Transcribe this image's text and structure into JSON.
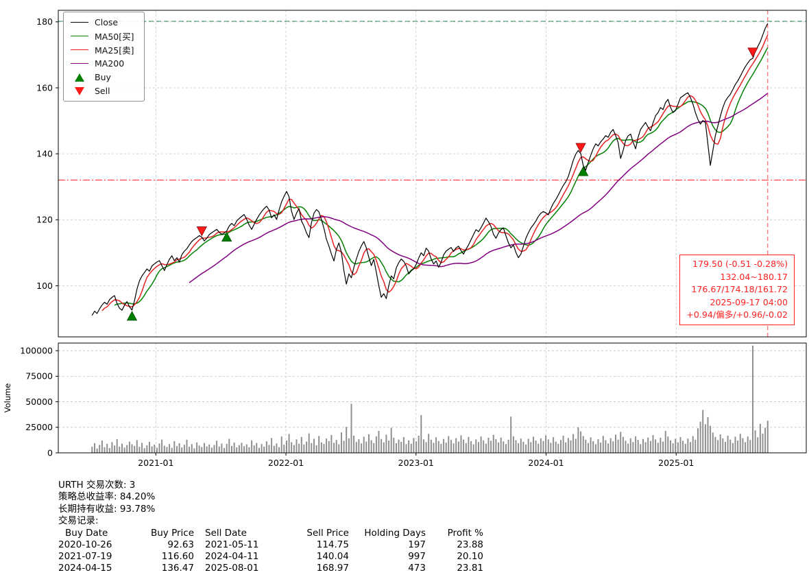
{
  "chart_data": {
    "type": "line",
    "title": "",
    "x_start_year": 2020.51,
    "x_step_years": 0.019165,
    "xlim": [
      2020.25,
      2026.0
    ],
    "x_ticks": [
      {
        "pos": 2021.0,
        "label": "2021-01"
      },
      {
        "pos": 2022.0,
        "label": "2022-01"
      },
      {
        "pos": 2023.0,
        "label": "2023-01"
      },
      {
        "pos": 2024.0,
        "label": "2024-01"
      },
      {
        "pos": 2025.0,
        "label": "2025-01"
      }
    ],
    "main": {
      "ylim": [
        84.5,
        183.5
      ],
      "y_ticks": [
        100,
        120,
        140,
        160,
        180
      ],
      "close_color": "#000000",
      "close": [
        91.0,
        92.3,
        91.6,
        93.0,
        94.2,
        95.0,
        94.4,
        95.8,
        96.5,
        97.0,
        94.6,
        93.2,
        92.6,
        94.1,
        95.2,
        93.6,
        92.63,
        95.5,
        99.0,
        101.5,
        103.0,
        104.0,
        105.1,
        104.4,
        106.0,
        106.6,
        107.2,
        107.6,
        106.1,
        104.6,
        106.4,
        108.0,
        109.1,
        107.6,
        108.5,
        107.2,
        109.4,
        110.5,
        111.2,
        112.4,
        113.4,
        114.1,
        114.6,
        115.2,
        114.75,
        113.6,
        114.4,
        115.5,
        116.1,
        116.6,
        117.1,
        116.2,
        115.6,
        116.0,
        116.6,
        118.1,
        118.9,
        118.2,
        119.6,
        120.4,
        121.0,
        121.6,
        120.1,
        118.4,
        117.1,
        118.6,
        120.1,
        121.4,
        122.5,
        123.4,
        124.1,
        123.0,
        120.6,
        121.5,
        120.1,
        123.0,
        125.4,
        127.1,
        128.6,
        127.0,
        122.6,
        120.1,
        122.0,
        123.4,
        119.6,
        118.1,
        116.0,
        114.6,
        119.1,
        122.0,
        123.1,
        122.4,
        120.0,
        117.4,
        114.1,
        112.0,
        109.6,
        107.5,
        111.0,
        113.0,
        110.1,
        104.6,
        100.5,
        103.6,
        102.4,
        105.5,
        108.1,
        110.4,
        112.1,
        113.4,
        111.5,
        108.6,
        106.1,
        108.0,
        104.1,
        100.0,
        96.5,
        97.6,
        96.1,
        100.1,
        103.0,
        102.1,
        105.4,
        107.0,
        108.1,
        107.4,
        106.0,
        103.6,
        104.5,
        105.1,
        106.5,
        108.4,
        110.0,
        109.1,
        111.4,
        110.5,
        108.1,
        106.6,
        107.5,
        105.6,
        107.1,
        109.4,
        110.5,
        111.1,
        111.6,
        110.4,
        111.5,
        112.0,
        110.6,
        109.6,
        111.1,
        112.4,
        114.0,
        115.5,
        117.0,
        116.4,
        117.6,
        119.0,
        120.5,
        119.4,
        118.0,
        115.6,
        114.4,
        116.0,
        117.0,
        117.5,
        115.1,
        113.0,
        111.5,
        112.4,
        110.1,
        108.5,
        109.6,
        112.0,
        114.4,
        116.1,
        117.5,
        118.5,
        119.6,
        121.0,
        122.0,
        122.5,
        122.1,
        121.5,
        123.4,
        125.0,
        126.1,
        127.5,
        129.0,
        130.4,
        131.5,
        133.1,
        135.5,
        138.0,
        139.9,
        141.0,
        140.04,
        136.47,
        135.0,
        137.4,
        139.5,
        141.5,
        143.0,
        142.4,
        143.6,
        144.5,
        145.5,
        145.0,
        146.5,
        147.4,
        145.5,
        143.4,
        138.6,
        141.0,
        144.0,
        145.4,
        146.0,
        143.6,
        141.5,
        145.0,
        147.4,
        148.5,
        149.5,
        148.1,
        147.0,
        149.4,
        151.5,
        152.5,
        154.0,
        153.4,
        155.5,
        156.5,
        154.1,
        152.5,
        153.1,
        155.0,
        157.0,
        157.5,
        158.1,
        158.5,
        157.0,
        155.1,
        152.5,
        150.4,
        149.0,
        150.1,
        149.5,
        143.0,
        136.5,
        141.0,
        145.5,
        148.5,
        151.4,
        154.0,
        156.0,
        157.1,
        158.0,
        159.5,
        161.0,
        162.1,
        163.5,
        165.0,
        166.4,
        167.5,
        168.5,
        168.97,
        171.0,
        172.5,
        174.0,
        176.0,
        178.0,
        179.5
      ],
      "ma": [
        {
          "name": "MA50[买]",
          "window": 10,
          "color": "#008000"
        },
        {
          "name": "MA25[卖]",
          "window": 5,
          "color": "#e62020"
        },
        {
          "name": "MA200",
          "window": 40,
          "color": "#800080"
        }
      ],
      "markers": {
        "buy": {
          "color": "#008000",
          "edge": "#004d00",
          "points": [
            {
              "i": 16,
              "price": 92.63
            },
            {
              "i": 54,
              "price": 116.6
            },
            {
              "i": 197,
              "price": 136.47
            }
          ]
        },
        "sell": {
          "color": "#ff1a1a",
          "edge": "#8b0000",
          "points": [
            {
              "i": 44,
              "price": 114.75
            },
            {
              "i": 196,
              "price": 140.04
            },
            {
              "i": 265,
              "price": 168.97
            }
          ]
        }
      },
      "hlines": [
        {
          "value": 180.17,
          "color": "#2e8b57",
          "style": "dashed"
        },
        {
          "value": 132.04,
          "color": "#ff3333",
          "style": "dashdot"
        }
      ],
      "vline": {
        "x_index": 271,
        "color": "#ff5555",
        "style": "dashed"
      }
    },
    "volume": {
      "ylabel": "Volume",
      "ylim": [
        0,
        107500
      ],
      "y_ticks": [
        0,
        25000,
        50000,
        75000,
        100000
      ],
      "bar_color": "#8f8f8f",
      "values": [
        6000,
        9500,
        4200,
        7800,
        12000,
        5600,
        8900,
        4700,
        10500,
        7200,
        13500,
        6100,
        9000,
        5200,
        7600,
        11000,
        8400,
        6800,
        12500,
        5900,
        9800,
        4600,
        7400,
        10800,
        6300,
        8100,
        5000,
        9200,
        13000,
        7000,
        5800,
        8700,
        4900,
        11500,
        6600,
        9400,
        5300,
        7900,
        12800,
        6000,
        8500,
        4400,
        10200,
        7100,
        5700,
        9600,
        6400,
        8200,
        5100,
        7700,
        11800,
        6200,
        9100,
        4800,
        8800,
        13800,
        6700,
        10000,
        5400,
        7500,
        9900,
        6500,
        8300,
        5500,
        12200,
        7300,
        9700,
        5000,
        8600,
        6100,
        11200,
        7800,
        14500,
        6900,
        9300,
        5600,
        16000,
        8000,
        12000,
        18500,
        10400,
        7600,
        13200,
        9000,
        15500,
        8200,
        11000,
        19000,
        9500,
        13800,
        7400,
        16500,
        10200,
        8800,
        14000,
        11500,
        17500,
        9800,
        12600,
        8400,
        20000,
        11800,
        25500,
        14200,
        48000,
        16800,
        10600,
        13400,
        9200,
        15800,
        11000,
        18200,
        12400,
        9600,
        16200,
        21500,
        13600,
        10200,
        17800,
        12000,
        24500,
        14800,
        9400,
        13000,
        10800,
        15400,
        8600,
        12200,
        9000,
        14600,
        11200,
        16800,
        37000,
        13200,
        10400,
        18600,
        12800,
        9800,
        15200,
        11600,
        8800,
        13600,
        10000,
        16400,
        12600,
        9200,
        14400,
        11000,
        17200,
        13000,
        9600,
        15600,
        11400,
        8400,
        13200,
        10600,
        16000,
        12200,
        9000,
        14800,
        11800,
        17600,
        13400,
        10200,
        15000,
        11200,
        8600,
        12800,
        35500,
        16200,
        12400,
        9400,
        14000,
        10800,
        8200,
        13800,
        10400,
        15800,
        12000,
        9000,
        14200,
        11600,
        17000,
        13200,
        9800,
        15400,
        11000,
        8800,
        12600,
        16800,
        10200,
        14600,
        12200,
        18400,
        13800,
        25000,
        21000,
        16400,
        12800,
        9600,
        15200,
        11400,
        8400,
        13400,
        10000,
        16600,
        12400,
        9200,
        14400,
        11200,
        17800,
        13000,
        20500,
        15600,
        11800,
        9000,
        14200,
        10600,
        16200,
        12600,
        8600,
        13600,
        10400,
        15000,
        11600,
        17400,
        13200,
        9800,
        14800,
        11000,
        21500,
        16000,
        12200,
        9400,
        13800,
        10200,
        15400,
        11800,
        8800,
        14000,
        10600,
        16400,
        12800,
        24000,
        30500,
        42000,
        28000,
        35000,
        26500,
        19800,
        15600,
        12400,
        18000,
        14200,
        10800,
        16800,
        13000,
        9600,
        15800,
        12000,
        18600,
        14400,
        10400,
        16000,
        12600,
        105000,
        22000,
        15200,
        28500,
        18800,
        24600,
        31500
      ]
    }
  },
  "legend": {
    "items": [
      {
        "key": "close",
        "label": "Close",
        "type": "line",
        "color": "#000000"
      },
      {
        "key": "ma50",
        "label": "MA50[买]",
        "type": "line",
        "color": "#008000"
      },
      {
        "key": "ma25",
        "label": "MA25[卖]",
        "type": "line",
        "color": "#e62020"
      },
      {
        "key": "ma200",
        "label": "MA200",
        "type": "line",
        "color": "#800080"
      },
      {
        "key": "buy",
        "label": "Buy",
        "type": "triangle-up",
        "color": "#008000"
      },
      {
        "key": "sell",
        "label": "Sell",
        "type": "triangle-down",
        "color": "#ff1a1a"
      }
    ]
  },
  "annotation": {
    "color": "#ff2020",
    "lines": [
      "179.50 (-0.51 -0.28%)",
      "132.04~180.17",
      "176.67/174.18/161.72",
      "2025-09-17 04:00",
      "+0.94/偏多/+0.96/-0.02"
    ]
  },
  "stats": {
    "line1": "URTH 交易次数: 3",
    "line2": "策略总收益率: 84.20%",
    "line3": "长期持有收益: 93.78%",
    "line4": "交易记录:",
    "table": {
      "headers": [
        "Buy Date",
        "Buy Price",
        "Sell Date",
        "Sell Price",
        "Holding Days",
        "Profit %"
      ],
      "rows": [
        [
          "2020-10-26",
          "92.63",
          "2021-05-11",
          "114.75",
          "197",
          "23.88"
        ],
        [
          "2021-07-19",
          "116.60",
          "2024-04-11",
          "140.04",
          "997",
          "20.10"
        ],
        [
          "2024-04-15",
          "136.47",
          "2025-08-01",
          "168.97",
          "473",
          "23.81"
        ]
      ]
    }
  }
}
